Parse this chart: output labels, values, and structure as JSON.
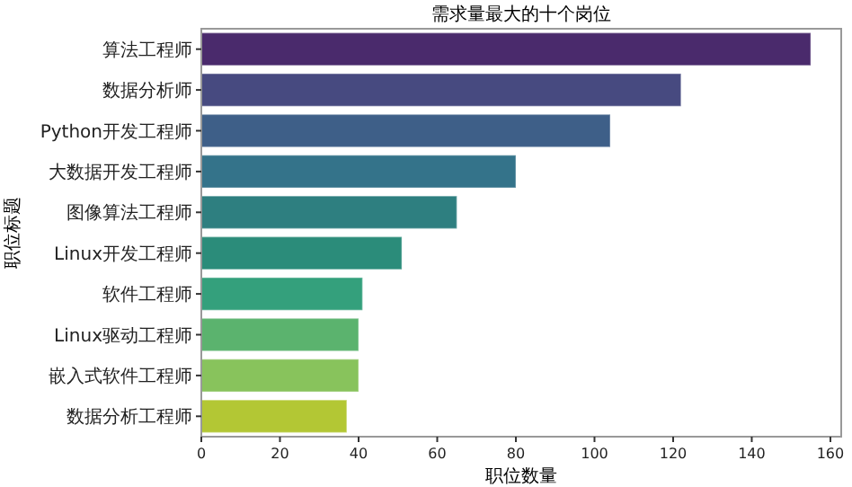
{
  "chart_data": {
    "type": "bar",
    "orientation": "horizontal",
    "title": "需求量最大的十个岗位",
    "xlabel": "职位数量",
    "ylabel": "职位标题",
    "categories": [
      "算法工程师",
      "数据分析师",
      "Python开发工程师",
      "大数据开发工程师",
      "图像算法工程师",
      "Linux开发工程师",
      "软件工程师",
      "Linux驱动工程师",
      "嵌入式软件工程师",
      "数据分析工程师"
    ],
    "values": [
      155,
      122,
      104,
      80,
      65,
      51,
      41,
      40,
      40,
      37
    ],
    "colors": [
      "#4a2a6c",
      "#474a80",
      "#3e5f88",
      "#34738a",
      "#2e7f80",
      "#2b8c7a",
      "#34a07c",
      "#5bb36e",
      "#88c35c",
      "#b3c734"
    ],
    "xlim": [
      0,
      162.75
    ],
    "xticks": [
      0,
      20,
      40,
      60,
      80,
      100,
      120,
      140,
      160
    ],
    "grid": false
  }
}
